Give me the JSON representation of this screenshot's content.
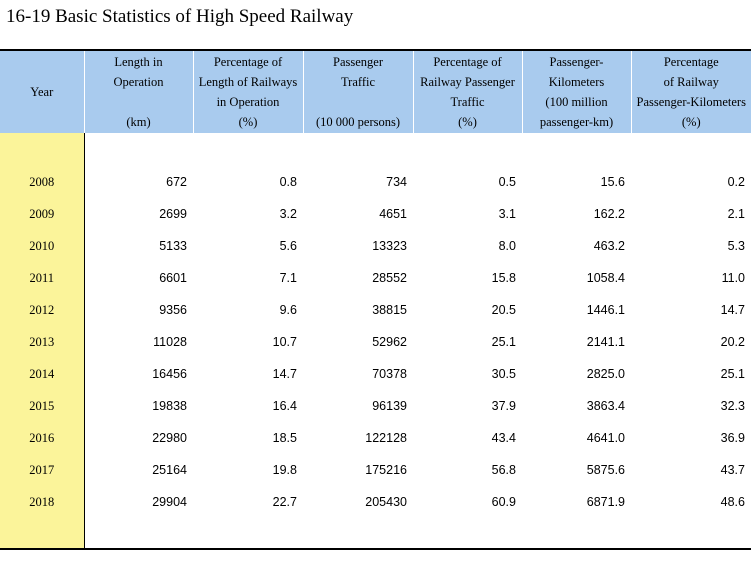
{
  "title": "16-19  Basic Statistics of High Speed Railway",
  "columns": [
    {
      "lines": [
        "Year"
      ],
      "unit": ""
    },
    {
      "lines": [
        "Length in",
        "Operation"
      ],
      "unit": "(km)"
    },
    {
      "lines": [
        "Percentage of",
        "Length of Railways",
        "in Operation"
      ],
      "unit": "(%)"
    },
    {
      "lines": [
        "Passenger",
        "Traffic"
      ],
      "unit": "(10 000 persons)"
    },
    {
      "lines": [
        "Percentage of",
        "Railway Passenger",
        "Traffic"
      ],
      "unit": "(%)"
    },
    {
      "lines": [
        "Passenger-",
        "Kilometers",
        "(100 million"
      ],
      "unit": "passenger-km)"
    },
    {
      "lines": [
        "Percentage",
        "of Railway",
        "Passenger-Kilometers"
      ],
      "unit": "(%)"
    }
  ],
  "rows": [
    [
      "2008",
      "672",
      "0.8",
      "734",
      "0.5",
      "15.6",
      "0.2"
    ],
    [
      "2009",
      "2699",
      "3.2",
      "4651",
      "3.1",
      "162.2",
      "2.1"
    ],
    [
      "2010",
      "5133",
      "5.6",
      "13323",
      "8.0",
      "463.2",
      "5.3"
    ],
    [
      "2011",
      "6601",
      "7.1",
      "28552",
      "15.8",
      "1058.4",
      "11.0"
    ],
    [
      "2012",
      "9356",
      "9.6",
      "38815",
      "20.5",
      "1446.1",
      "14.7"
    ],
    [
      "2013",
      "11028",
      "10.7",
      "52962",
      "25.1",
      "2141.1",
      "20.2"
    ],
    [
      "2014",
      "16456",
      "14.7",
      "70378",
      "30.5",
      "2825.0",
      "25.1"
    ],
    [
      "2015",
      "19838",
      "16.4",
      "96139",
      "37.9",
      "3863.4",
      "32.3"
    ],
    [
      "2016",
      "22980",
      "18.5",
      "122128",
      "43.4",
      "4641.0",
      "36.9"
    ],
    [
      "2017",
      "25164",
      "19.8",
      "175216",
      "56.8",
      "5875.6",
      "43.7"
    ],
    [
      "2018",
      "29904",
      "22.7",
      "205430",
      "60.9",
      "6871.9",
      "48.6"
    ]
  ]
}
